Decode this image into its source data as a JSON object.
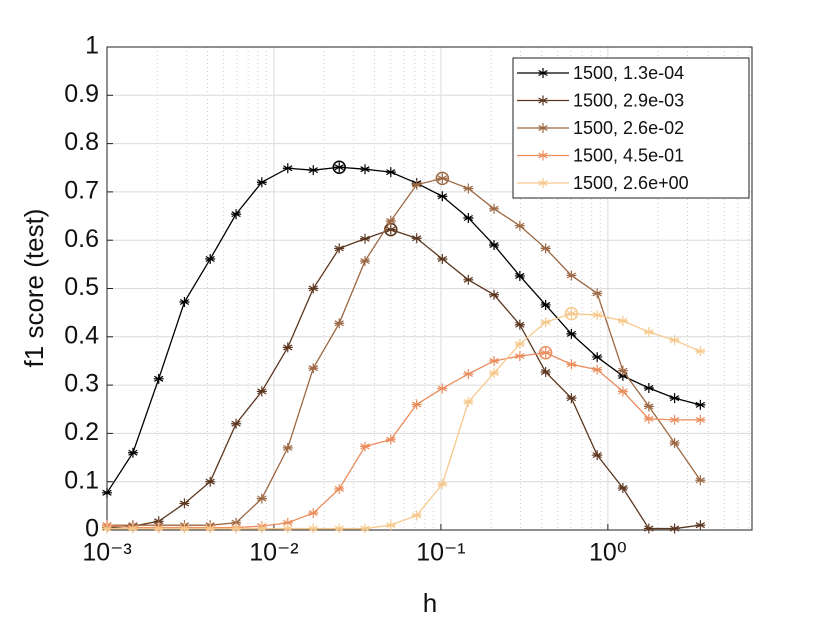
{
  "chart_data": {
    "type": "line",
    "xlabel": "h",
    "ylabel": "f1 score (test)",
    "xscale": "log",
    "xlim": [
      0.001,
      7.3
    ],
    "ylim": [
      0,
      1
    ],
    "xticks": [
      {
        "value": 0.001,
        "label": "10⁻³"
      },
      {
        "value": 0.01,
        "label": "10⁻²"
      },
      {
        "value": 0.1,
        "label": "10⁻¹"
      },
      {
        "value": 1,
        "label": "10⁰"
      }
    ],
    "yticks": [
      0,
      0.1,
      0.2,
      0.3,
      0.4,
      0.5,
      0.6,
      0.7,
      0.8,
      0.9,
      1
    ],
    "grid": true,
    "minor_grid": true,
    "legend": "upper right",
    "x": [
      0.001,
      0.00143,
      0.00204,
      0.00291,
      0.00415,
      0.00593,
      0.00846,
      0.0121,
      0.0172,
      0.0246,
      0.0351,
      0.0501,
      0.0716,
      0.102,
      0.146,
      0.208,
      0.297,
      0.424,
      0.605,
      0.863,
      1.23,
      1.76,
      2.51,
      3.58
    ],
    "series": [
      {
        "name": "1500, 1.3e-04",
        "color": "#000000",
        "circled": 9,
        "values": [
          0.077,
          0.16,
          0.313,
          0.472,
          0.561,
          0.654,
          0.72,
          0.749,
          0.745,
          0.751,
          0.747,
          0.741,
          0.718,
          0.691,
          0.646,
          0.59,
          0.526,
          0.466,
          0.406,
          0.358,
          0.319,
          0.294,
          0.273,
          0.259
        ]
      },
      {
        "name": "1500, 2.9e-03",
        "color": "#5c3720",
        "circled": 11,
        "values": [
          0.005,
          0.008,
          0.018,
          0.055,
          0.1,
          0.22,
          0.287,
          0.378,
          0.5,
          0.583,
          0.603,
          0.622,
          0.604,
          0.561,
          0.518,
          0.487,
          0.425,
          0.327,
          0.273,
          0.155,
          0.087,
          0.003,
          0.003,
          0.01
        ]
      },
      {
        "name": "1500, 2.6e-02",
        "color": "#9c6843",
        "circled": 13,
        "values": [
          0.01,
          0.01,
          0.01,
          0.01,
          0.01,
          0.015,
          0.065,
          0.17,
          0.335,
          0.428,
          0.557,
          0.64,
          0.715,
          0.728,
          0.707,
          0.665,
          0.63,
          0.583,
          0.527,
          0.49,
          0.33,
          0.256,
          0.18,
          0.103
        ]
      },
      {
        "name": "1500, 4.5e-01",
        "color": "#eb8c5c",
        "circled": 17,
        "values": [
          0.01,
          0.005,
          0.005,
          0.005,
          0.005,
          0.005,
          0.008,
          0.015,
          0.035,
          0.085,
          0.173,
          0.187,
          0.26,
          0.293,
          0.323,
          0.35,
          0.36,
          0.367,
          0.343,
          0.332,
          0.287,
          0.23,
          0.228,
          0.228
        ]
      },
      {
        "name": "1500, 2.6e+00",
        "color": "#f7c88c",
        "circled": 18,
        "values": [
          0.003,
          0.003,
          0.003,
          0.003,
          0.003,
          0.003,
          0.003,
          0.003,
          0.003,
          0.003,
          0.003,
          0.01,
          0.03,
          0.095,
          0.265,
          0.325,
          0.385,
          0.43,
          0.448,
          0.445,
          0.433,
          0.41,
          0.393,
          0.37
        ]
      }
    ]
  }
}
